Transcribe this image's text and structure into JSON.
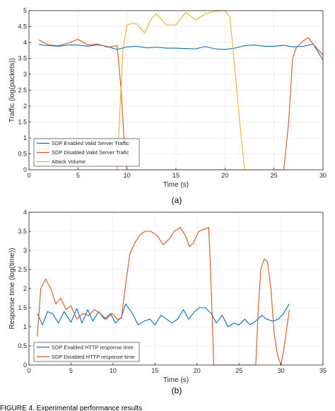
{
  "chart_data": [
    {
      "type": "line",
      "subplot_label": "(a)",
      "xlabel": "Time (s)",
      "ylabel": "Traffic (log(packets))",
      "xlim": [
        0,
        30
      ],
      "ylim": [
        0,
        5
      ],
      "xticks": [
        0,
        5,
        10,
        15,
        20,
        25,
        30
      ],
      "yticks": [
        0,
        0.5,
        1,
        1.5,
        2,
        2.5,
        3,
        3.5,
        4,
        4.5,
        5
      ],
      "legend_position": "bottom-left",
      "series": [
        {
          "name": "SDP Enabled Valid Server Traffic",
          "color": "#0072BD",
          "points": [
            [
              1,
              3.93
            ],
            [
              2,
              3.9
            ],
            [
              3,
              3.88
            ],
            [
              4,
              3.92
            ],
            [
              5,
              3.92
            ],
            [
              6,
              3.88
            ],
            [
              7,
              3.93
            ],
            [
              8,
              3.87
            ],
            [
              9,
              3.78
            ],
            [
              10,
              3.86
            ],
            [
              11,
              3.88
            ],
            [
              12,
              3.83
            ],
            [
              13,
              3.85
            ],
            [
              14,
              3.82
            ],
            [
              15,
              3.82
            ],
            [
              16,
              3.81
            ],
            [
              17,
              3.8
            ],
            [
              18,
              3.87
            ],
            [
              19,
              3.8
            ],
            [
              20,
              3.78
            ],
            [
              21,
              3.82
            ],
            [
              22,
              3.9
            ],
            [
              23,
              3.92
            ],
            [
              24,
              3.88
            ],
            [
              25,
              3.88
            ],
            [
              26,
              3.91
            ],
            [
              27,
              3.86
            ],
            [
              28,
              3.88
            ],
            [
              29,
              3.95
            ],
            [
              30,
              3.45
            ]
          ]
        },
        {
          "name": "SDP Disabled Valid Server Trafic",
          "color": "#D95319",
          "points": [
            [
              1,
              4.08
            ],
            [
              2,
              3.92
            ],
            [
              3,
              3.9
            ],
            [
              4,
              3.98
            ],
            [
              5,
              4.1
            ],
            [
              6,
              3.92
            ],
            [
              7,
              3.95
            ],
            [
              8,
              3.85
            ],
            [
              9,
              3.9
            ],
            [
              9.4,
              2.5
            ],
            [
              9.8,
              0.5
            ],
            [
              10,
              0
            ],
            [
              26,
              0
            ],
            [
              26.5,
              1.5
            ],
            [
              26.9,
              3.5
            ],
            [
              27.3,
              3.85
            ],
            [
              28,
              4.05
            ],
            [
              28.5,
              4.15
            ],
            [
              29,
              3.95
            ],
            [
              30,
              3.6
            ]
          ]
        },
        {
          "name": "Attack Volume",
          "color": "#EDB120",
          "points": [
            [
              9,
              0
            ],
            [
              9.3,
              2
            ],
            [
              9.6,
              3.8
            ],
            [
              10,
              4.55
            ],
            [
              10.5,
              4.6
            ],
            [
              11,
              4.58
            ],
            [
              11.8,
              4.3
            ],
            [
              12.5,
              4.75
            ],
            [
              13,
              4.9
            ],
            [
              14,
              4.55
            ],
            [
              15,
              4.55
            ],
            [
              16,
              4.95
            ],
            [
              17,
              4.7
            ],
            [
              18,
              4.9
            ],
            [
              19,
              4.98
            ],
            [
              20,
              5
            ],
            [
              20.5,
              4.8
            ],
            [
              21,
              3.2
            ],
            [
              21.5,
              1.5
            ],
            [
              22,
              0
            ]
          ]
        }
      ]
    },
    {
      "type": "line",
      "subplot_label": "(b)",
      "xlabel": "Time (s)",
      "ylabel": "Response time (log(time))",
      "xlim": [
        0,
        35
      ],
      "ylim": [
        0,
        4
      ],
      "xticks": [
        0,
        5,
        10,
        15,
        20,
        25,
        30,
        35
      ],
      "yticks": [
        0,
        0.5,
        1,
        1.5,
        2,
        2.5,
        3,
        3.5,
        4
      ],
      "legend_position": "bottom-left",
      "series": [
        {
          "name": "SDP Enabled HTTP response time",
          "color": "#0072BD",
          "points": [
            [
              1,
              1.35
            ],
            [
              1.6,
              1.05
            ],
            [
              2.2,
              1.4
            ],
            [
              2.8,
              1.35
            ],
            [
              3.5,
              1.1
            ],
            [
              4.2,
              1.4
            ],
            [
              5,
              1.12
            ],
            [
              5.7,
              1.48
            ],
            [
              6.3,
              1.1
            ],
            [
              7,
              1.45
            ],
            [
              7.6,
              1.15
            ],
            [
              8.3,
              1.4
            ],
            [
              9,
              1.2
            ],
            [
              9.7,
              1.35
            ],
            [
              10.3,
              1.1
            ],
            [
              11,
              1.25
            ],
            [
              11.5,
              1.6
            ],
            [
              12.3,
              1.35
            ],
            [
              13,
              1.05
            ],
            [
              13.7,
              1.15
            ],
            [
              14.4,
              1.2
            ],
            [
              15,
              1.05
            ],
            [
              15.7,
              1.3
            ],
            [
              16.4,
              1.2
            ],
            [
              17,
              1.1
            ],
            [
              17.7,
              1.2
            ],
            [
              18.4,
              1.45
            ],
            [
              19,
              1.2
            ],
            [
              19.7,
              1.4
            ],
            [
              20.3,
              1.5
            ],
            [
              21,
              1.5
            ],
            [
              21.7,
              1.35
            ],
            [
              22.3,
              1.1
            ],
            [
              23,
              1.3
            ],
            [
              23.7,
              1.0
            ],
            [
              24.4,
              1.1
            ],
            [
              25,
              1.05
            ],
            [
              25.7,
              1.2
            ],
            [
              26.3,
              1.05
            ],
            [
              27,
              1.15
            ],
            [
              27.7,
              1.3
            ],
            [
              28.3,
              1.2
            ],
            [
              29,
              1.15
            ],
            [
              29.7,
              1.2
            ],
            [
              30.3,
              1.35
            ],
            [
              31,
              1.6
            ]
          ]
        },
        {
          "name": "SDP Disabled HTTP response time",
          "color": "#D95319",
          "points": [
            [
              1,
              0.75
            ],
            [
              1.4,
              2.0
            ],
            [
              2,
              2.25
            ],
            [
              2.6,
              2.0
            ],
            [
              3.2,
              1.6
            ],
            [
              3.8,
              1.75
            ],
            [
              4.4,
              1.45
            ],
            [
              5,
              1.55
            ],
            [
              5.7,
              1.2
            ],
            [
              6.4,
              1.35
            ],
            [
              7.1,
              1.3
            ],
            [
              7.8,
              1.45
            ],
            [
              8.5,
              1.35
            ],
            [
              9.2,
              1.2
            ],
            [
              9.9,
              1.35
            ],
            [
              10.5,
              1.2
            ],
            [
              11,
              1.22
            ],
            [
              11.5,
              2.1
            ],
            [
              12,
              2.9
            ],
            [
              12.6,
              3.2
            ],
            [
              13.2,
              3.4
            ],
            [
              13.8,
              3.5
            ],
            [
              14.5,
              3.5
            ],
            [
              15.2,
              3.4
            ],
            [
              16,
              3.15
            ],
            [
              16.7,
              3.3
            ],
            [
              17.3,
              3.5
            ],
            [
              18,
              3.6
            ],
            [
              18.6,
              3.4
            ],
            [
              19.1,
              3.1
            ],
            [
              19.6,
              3.2
            ],
            [
              20.2,
              3.5
            ],
            [
              20.8,
              3.55
            ],
            [
              21.4,
              3.6
            ],
            [
              21.7,
              2.0
            ],
            [
              22,
              0
            ],
            [
              27,
              0
            ],
            [
              27.3,
              1.5
            ],
            [
              27.6,
              2.5
            ],
            [
              28,
              2.78
            ],
            [
              28.4,
              2.7
            ],
            [
              28.8,
              2.0
            ],
            [
              29.2,
              0.8
            ],
            [
              29.6,
              0.25
            ],
            [
              30,
              0
            ],
            [
              30.4,
              0.5
            ],
            [
              31,
              1.45
            ]
          ]
        }
      ]
    }
  ],
  "caption": "FIGURE 4. Experimental performance results"
}
